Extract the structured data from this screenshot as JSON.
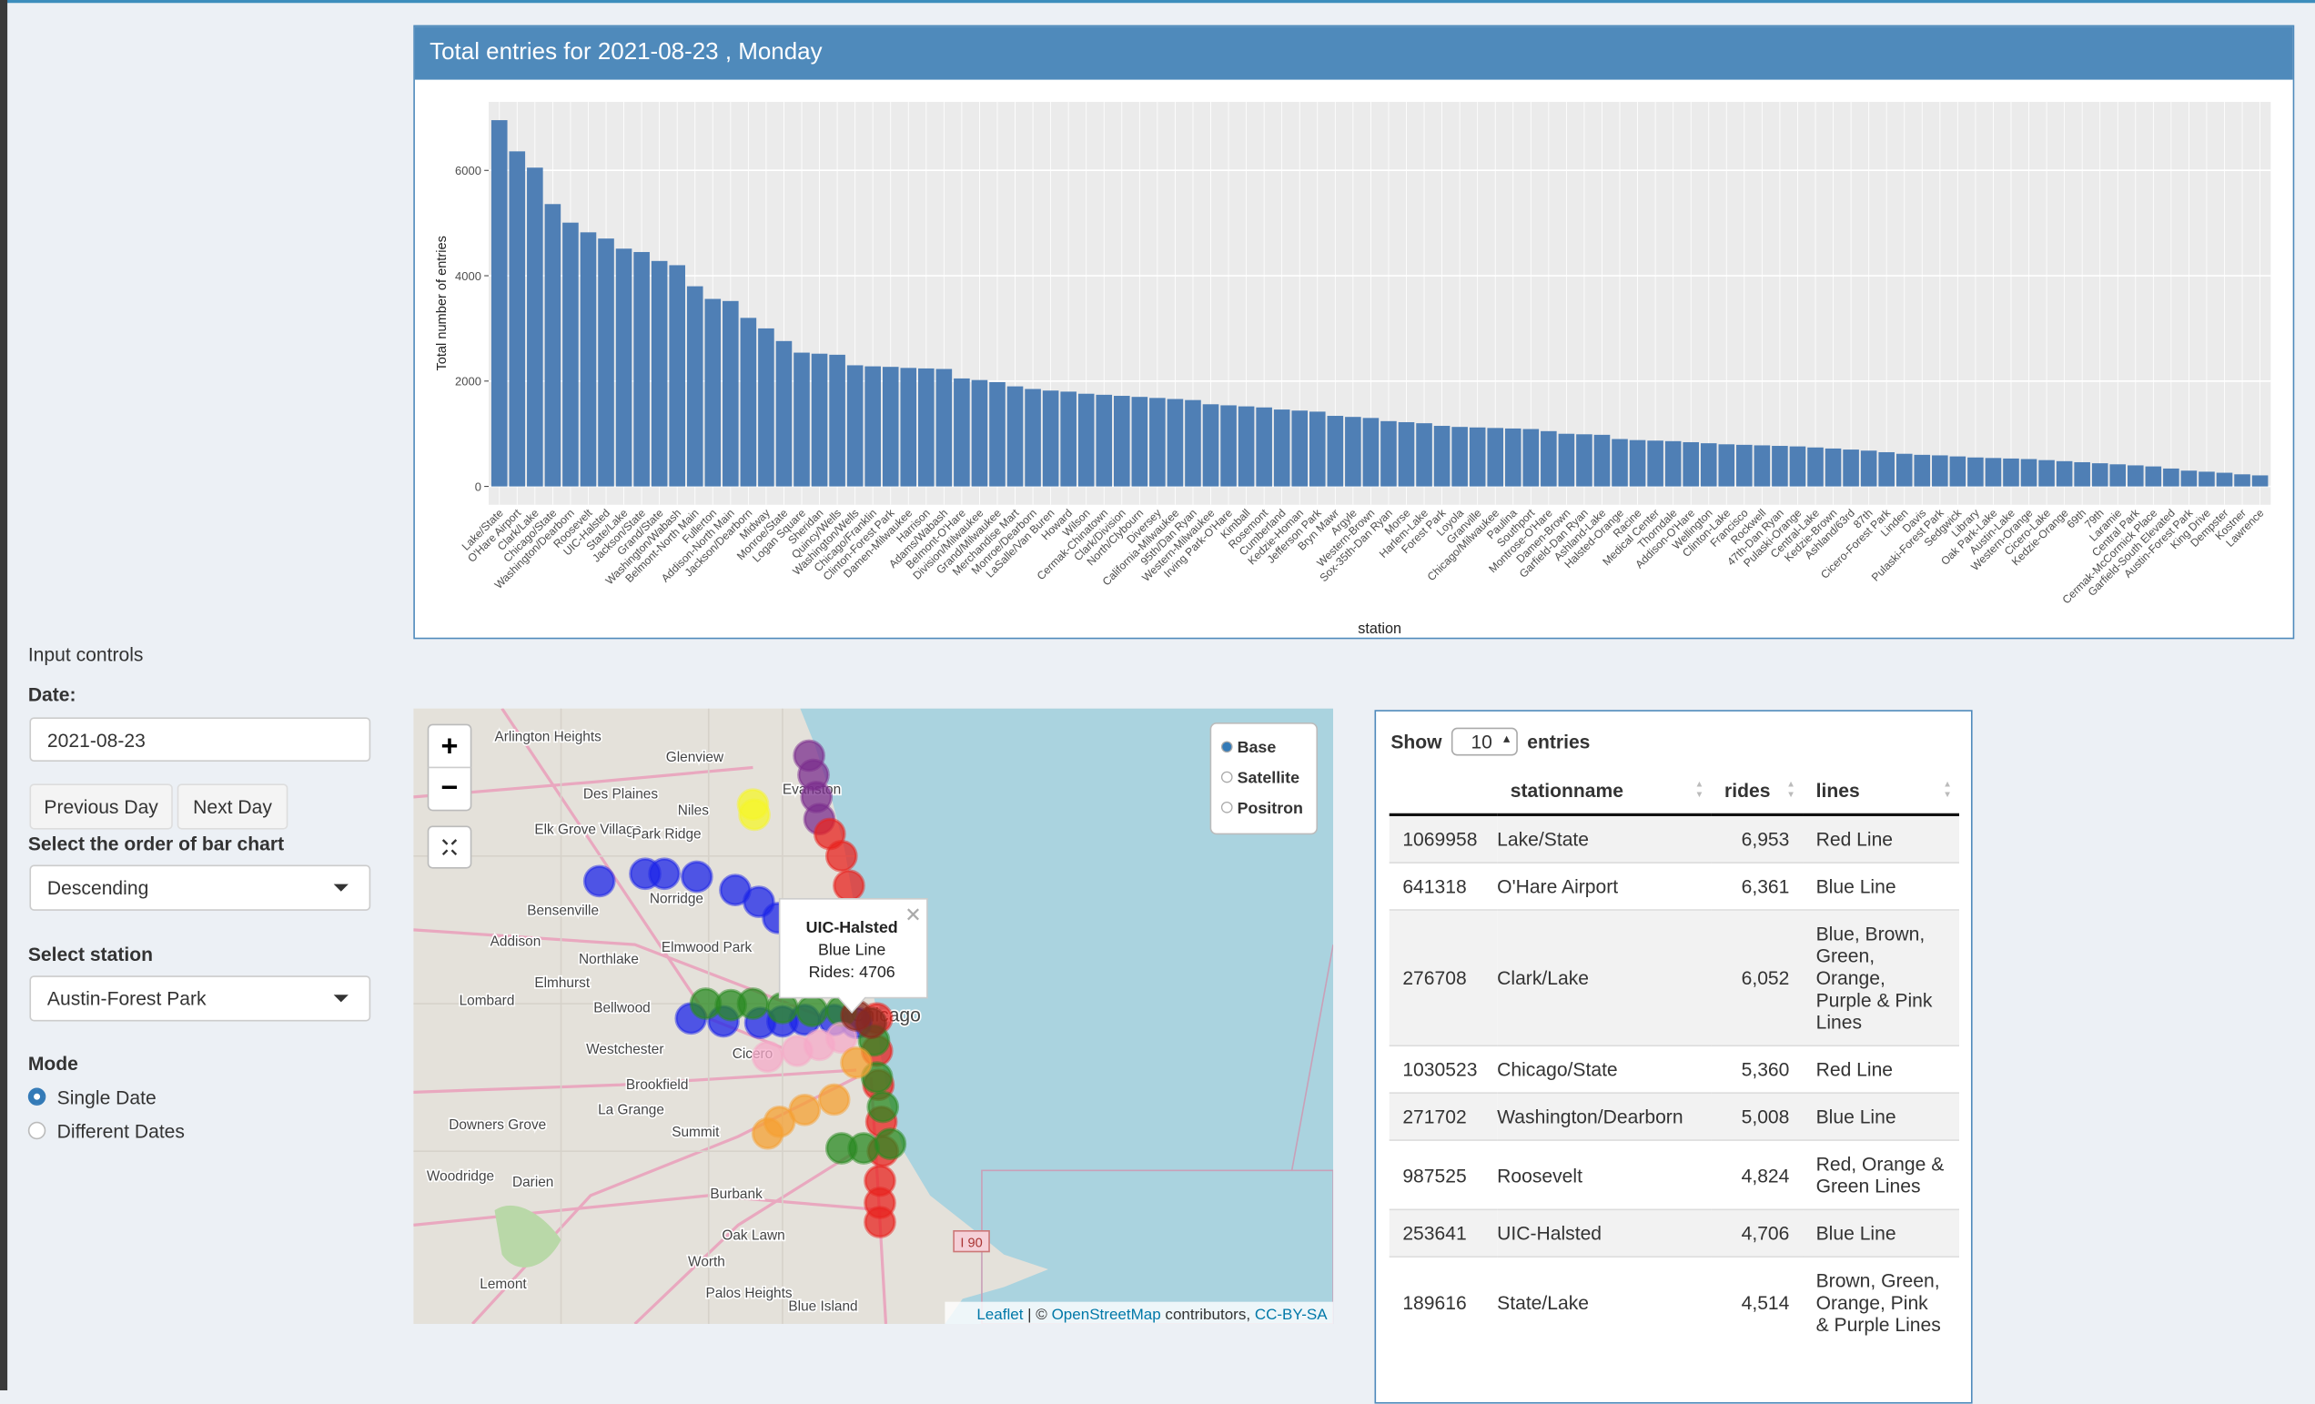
{
  "sidebar": {
    "heading": "Input controls",
    "date_label": "Date:",
    "date_value": "2021-08-23",
    "prev_button": "Previous Day",
    "next_button": "Next Day",
    "order_label": "Select the order of bar chart",
    "order_value": "Descending",
    "station_label": "Select station",
    "station_value": "Austin-Forest Park",
    "mode_label": "Mode",
    "mode_options": [
      "Single Date",
      "Different Dates"
    ]
  },
  "chart_data": {
    "type": "bar",
    "title": "Total entries for 2021-08-23 , Monday",
    "x_label": "station",
    "y_label": "Total number of entries",
    "color": "#4f7fb5",
    "grid": true,
    "ylim": [
      -348,
      7301
    ],
    "yticks": [
      0,
      2000,
      4000,
      6000
    ],
    "categories": [
      "Lake/State",
      "O'Hare Airport",
      "Clark/Lake",
      "Chicago/State",
      "Washington/Dearborn",
      "Roosevelt",
      "UIC-Halsted",
      "State/Lake",
      "Jackson/State",
      "Grand/State",
      "Washington/Wabash",
      "Belmont-North Main",
      "Fullerton",
      "Addison-North Main",
      "Jackson/Dearborn",
      "Midway",
      "Monroe/State",
      "Logan Square",
      "Sheridan",
      "Quincy/Wells",
      "Washington/Wells",
      "Chicago/Franklin",
      "Clinton-Forest Park",
      "Damen-Milwaukee",
      "Harrison",
      "Adams/Wabash",
      "Belmont-O'Hare",
      "Division/Milwaukee",
      "Grand/Milwaukee",
      "Merchandise Mart",
      "Monroe/Dearborn",
      "LaSalle/Van Buren",
      "Howard",
      "Wilson",
      "Cermak-Chinatown",
      "Clark/Division",
      "North/Clybourn",
      "Diversey",
      "California-Milwaukee",
      "95th/Dan Ryan",
      "Western-Milwaukee",
      "Irving Park-O'Hare",
      "Kimball",
      "Rosemont",
      "Cumberland",
      "Kedzie-Homan",
      "Jefferson Park",
      "Bryn Mawr",
      "Argyle",
      "Western-Brown",
      "Sox-35th-Dan Ryan",
      "Morse",
      "Harlem-Lake",
      "Forest Park",
      "Loyola",
      "Granville",
      "Chicago/Milwaukee",
      "Paulina",
      "Southport",
      "Montrose-O'Hare",
      "Damen-Brown",
      "Garfield-Dan Ryan",
      "Ashland-Lake",
      "Halsted-Orange",
      "Racine",
      "Medical Center",
      "Thorndale",
      "Addison-O'Hare",
      "Wellington",
      "Clinton-Lake",
      "Francisco",
      "Rockwell",
      "47th-Dan Ryan",
      "Pulaski-Orange",
      "Central-Lake",
      "Kedzie-Brown",
      "Ashland/63rd",
      "87th",
      "Cicero-Forest Park",
      "Linden",
      "Davis",
      "Pulaski-Forest Park",
      "Sedgwick",
      "Library",
      "Oak Park-Lake",
      "Austin-Lake",
      "Western-Orange",
      "Cicero-Lake",
      "Kedzie-Orange",
      "69th",
      "79th",
      "Laramie",
      "Central Park",
      "Cermak-McCormick Place",
      "Garfield-South Elevated",
      "Austin-Forest Park",
      "King Drive",
      "Dempster",
      "Kostner",
      "Lawrence"
    ],
    "values": [
      6953,
      6361,
      6052,
      5360,
      5008,
      4824,
      4706,
      4514,
      4450,
      4280,
      4200,
      3800,
      3560,
      3520,
      3200,
      3000,
      2760,
      2540,
      2520,
      2500,
      2300,
      2280,
      2270,
      2250,
      2240,
      2230,
      2050,
      2020,
      1980,
      1900,
      1850,
      1820,
      1800,
      1760,
      1740,
      1720,
      1700,
      1680,
      1660,
      1640,
      1560,
      1540,
      1520,
      1500,
      1460,
      1440,
      1420,
      1340,
      1320,
      1300,
      1240,
      1220,
      1200,
      1150,
      1130,
      1120,
      1110,
      1100,
      1090,
      1050,
      1000,
      990,
      980,
      900,
      880,
      870,
      860,
      840,
      820,
      800,
      790,
      780,
      770,
      760,
      740,
      720,
      700,
      680,
      650,
      620,
      600,
      590,
      570,
      550,
      540,
      530,
      520,
      500,
      480,
      460,
      440,
      420,
      400,
      380,
      340,
      300,
      280,
      260,
      230,
      210
    ]
  },
  "map": {
    "zoom_in": "+",
    "zoom_out": "−",
    "layers": [
      "Base",
      "Satellite",
      "Positron"
    ],
    "towns": [
      "Arlington Heights",
      "Glenview",
      "Des Plaines",
      "Niles",
      "Evanston",
      "Elk Grove Village",
      "Park Ridge",
      "Norridge",
      "Bensenville",
      "Addison",
      "Northlake",
      "Elmwood Park",
      "Elmhurst",
      "Lombard",
      "Bellwood",
      "Westchester",
      "Cicero",
      "Brookfield",
      "La Grange",
      "Summit",
      "Downers Grove",
      "Woodridge",
      "Darien",
      "Burbank",
      "Oak Lawn",
      "Worth",
      "Palos Heights",
      "Lemont",
      "Blue Island",
      "Chicago"
    ],
    "highway": "I 90",
    "popup": {
      "title": "UIC-Halsted",
      "line": "Blue Line",
      "rides": "Rides: 4706"
    },
    "attribution": [
      "Leaflet",
      " | © ",
      "OpenStreetMap",
      " contributors, ",
      "CC-BY-SA"
    ]
  },
  "table": {
    "show_label": "Show",
    "page_size": "10",
    "entries_label": "entries",
    "columns": [
      "stationname",
      "rides",
      "lines"
    ],
    "rows": [
      [
        "1069958",
        "Lake/State",
        "6,953",
        "Red Line"
      ],
      [
        "641318",
        "O'Hare Airport",
        "6,361",
        "Blue Line"
      ],
      [
        "276708",
        "Clark/Lake",
        "6,052",
        "Blue, Brown, Green, Orange, Purple & Pink Lines"
      ],
      [
        "1030523",
        "Chicago/State",
        "5,360",
        "Red Line"
      ],
      [
        "271702",
        "Washington/Dearborn",
        "5,008",
        "Blue Line"
      ],
      [
        "987525",
        "Roosevelt",
        "4,824",
        "Red, Orange & Green Lines"
      ],
      [
        "253641",
        "UIC-Halsted",
        "4,706",
        "Blue Line"
      ],
      [
        "189616",
        "State/Lake",
        "4,514",
        "Brown, Green, Orange, Pink & Purple Lines"
      ]
    ]
  }
}
